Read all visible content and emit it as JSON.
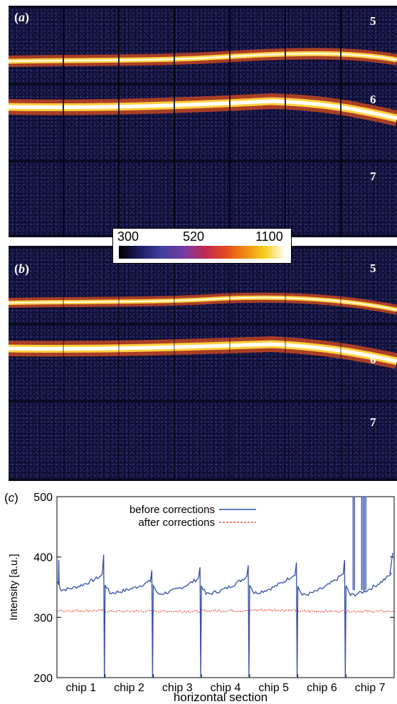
{
  "panel_a": {
    "letter": "a",
    "rows": [
      "5",
      "6",
      "7"
    ]
  },
  "panel_b": {
    "letter": "b",
    "rows": [
      "5",
      "6",
      "7"
    ]
  },
  "colorbar": {
    "labels": [
      "300",
      "520",
      "1100"
    ]
  },
  "chart_data": {
    "type": "line",
    "panel_label": "c",
    "xlabel": "horizontal section",
    "ylabel": "Intensity [a.u.]",
    "ylim": [
      200,
      500
    ],
    "yticks": [
      200,
      300,
      400,
      500
    ],
    "categories": [
      "chip 1",
      "chip 2",
      "chip 3",
      "chip 4",
      "chip 5",
      "chip 6",
      "chip 7"
    ],
    "legend_position": "top-center",
    "series": [
      {
        "name": "before corrections",
        "color": "#3050a8",
        "style": "solid",
        "chip_start": [
          345,
          340,
          338,
          338,
          340,
          336,
          336
        ],
        "chip_end": [
          370,
          360,
          365,
          368,
          372,
          372,
          372
        ],
        "chip_edge_peak": [
          404,
          378,
          383,
          386,
          391,
          395,
          407
        ],
        "chip_edge_dip": 200,
        "spike_at_start": 395,
        "chip7_spikes": [
          500,
          500,
          500
        ]
      },
      {
        "name": "after corrections",
        "color": "#e03020",
        "style": "dashed",
        "chip_level": [
          311,
          310,
          310,
          311,
          312,
          310,
          310
        ]
      }
    ]
  }
}
